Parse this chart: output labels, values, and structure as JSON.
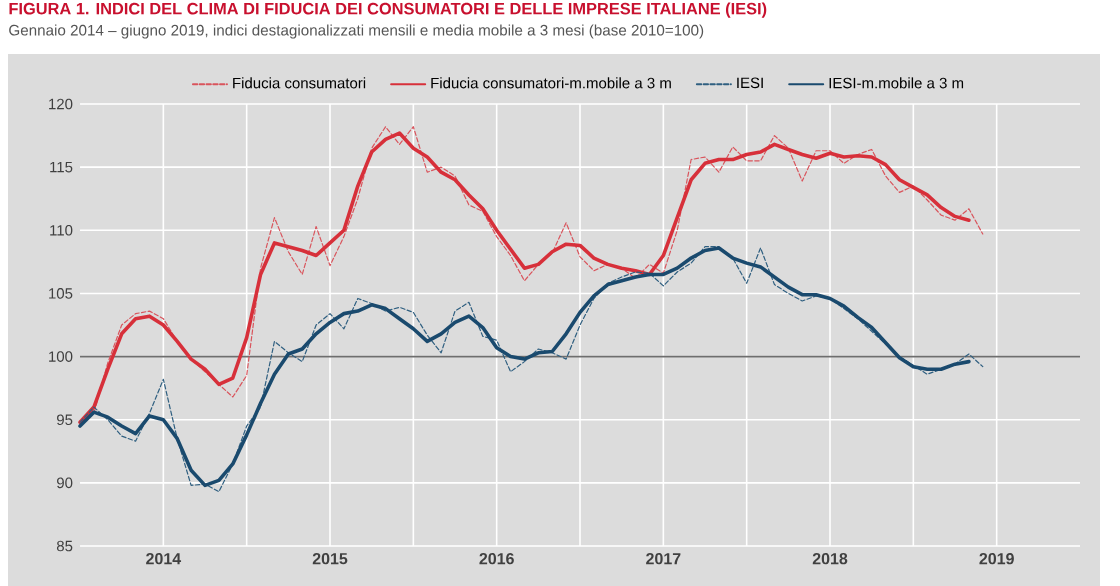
{
  "chart_data": {
    "type": "line",
    "title": "FIGURA 1. INDICI DEL CLIMA DI FIDUCIA DEI CONSUMATORI E DELLE IMPRESE ITALIANE (IESI)",
    "subtitle": "Gennaio 2014 – giugno 2019, indici destagionalizzati mensili e media mobile a 3 mesi (base 2010=100)",
    "x": [
      "2014-01",
      "2014-02",
      "2014-03",
      "2014-04",
      "2014-05",
      "2014-06",
      "2014-07",
      "2014-08",
      "2014-09",
      "2014-10",
      "2014-11",
      "2014-12",
      "2015-01",
      "2015-02",
      "2015-03",
      "2015-04",
      "2015-05",
      "2015-06",
      "2015-07",
      "2015-08",
      "2015-09",
      "2015-10",
      "2015-11",
      "2015-12",
      "2016-01",
      "2016-02",
      "2016-03",
      "2016-04",
      "2016-05",
      "2016-06",
      "2016-07",
      "2016-08",
      "2016-09",
      "2016-10",
      "2016-11",
      "2016-12",
      "2017-01",
      "2017-02",
      "2017-03",
      "2017-04",
      "2017-05",
      "2017-06",
      "2017-07",
      "2017-08",
      "2017-09",
      "2017-10",
      "2017-11",
      "2017-12",
      "2018-01",
      "2018-02",
      "2018-03",
      "2018-04",
      "2018-05",
      "2018-06",
      "2018-07",
      "2018-08",
      "2018-09",
      "2018-10",
      "2018-11",
      "2018-12",
      "2019-01",
      "2019-02",
      "2019-03",
      "2019-04",
      "2019-05",
      "2019-06"
    ],
    "series": [
      {
        "name": "Fiducia consumatori",
        "color": "#d9545c",
        "line_style": "dashed",
        "values": [
          94.5,
          95.5,
          99.5,
          102.5,
          103.4,
          103.6,
          103.0,
          101.2,
          99.8,
          98.8,
          97.8,
          96.8,
          98.5,
          107,
          111,
          108.3,
          106.5,
          110.3,
          107.2,
          109.5,
          112.5,
          116.5,
          118.2,
          116.8,
          118.2,
          114.6,
          115.0,
          114.3,
          112.0,
          111.5,
          109.5,
          108.0,
          106.0,
          107.3,
          108.2,
          110.6,
          107.9,
          106.8,
          107.3,
          107.0,
          106.2,
          107.3,
          106.6,
          110.0,
          115.6,
          115.8,
          114.6,
          116.6,
          115.5,
          115.5,
          117.5,
          116.5,
          113.9,
          116.3,
          116.3,
          115.3,
          116.0,
          116.4,
          114.3,
          113.0,
          113.5,
          112.4,
          111.2,
          110.8,
          111.7,
          109.7
        ]
      },
      {
        "name": "Fiducia consumatori-m.mobile a 3 m",
        "color": "#d7303a",
        "line_style": "solid",
        "values": [
          94.8,
          96,
          99,
          101.8,
          103.0,
          103.2,
          102.5,
          101.2,
          99.8,
          99.0,
          97.8,
          98.3,
          101.5,
          106.5,
          109.0,
          108.7,
          108.4,
          108.0,
          109.0,
          110.0,
          113.5,
          116.2,
          117.2,
          117.7,
          116.5,
          115.8,
          114.6,
          114.0,
          112.8,
          111.7,
          110.0,
          108.5,
          107.0,
          107.3,
          108.3,
          108.9,
          108.8,
          107.8,
          107.3,
          107.0,
          106.8,
          106.5,
          108.0,
          111.0,
          114.0,
          115.3,
          115.6,
          115.6,
          116.0,
          116.2,
          116.8,
          116.4,
          116.0,
          115.7,
          116.1,
          115.8,
          115.9,
          115.8,
          115.2,
          114.0,
          113.4,
          112.8,
          111.8,
          111.1,
          110.8,
          null
        ]
      },
      {
        "name": "IESI",
        "color": "#2f5f80",
        "line_style": "dashed",
        "values": [
          94.8,
          96,
          95.0,
          93.7,
          93.3,
          95.5,
          98.2,
          93.5,
          89.8,
          89.9,
          89.3,
          91.5,
          94.5,
          96,
          101.2,
          100.3,
          99.6,
          102.5,
          103.4,
          102.2,
          104.6,
          104.2,
          103.6,
          103.9,
          103.5,
          101.7,
          100.3,
          103.6,
          104.3,
          101.6,
          101.3,
          98.8,
          99.6,
          100.6,
          100.3,
          99.8,
          102.5,
          104.6,
          105.8,
          106.3,
          106.7,
          106.6,
          105.6,
          106.7,
          107.4,
          108.7,
          108.7,
          107.8,
          105.8,
          108.6,
          105.7,
          105.0,
          104.4,
          104.8,
          104.6,
          103.8,
          103.0,
          102.0,
          101.0,
          100.0,
          99.3,
          98.6,
          99.0,
          99.4,
          100.2,
          99.2
        ]
      },
      {
        "name": "IESI-m.mobile a 3 m",
        "color": "#1a4a6e",
        "line_style": "solid",
        "values": [
          94.5,
          95.6,
          95.2,
          94.5,
          93.9,
          95.3,
          95.0,
          93.5,
          91.0,
          89.8,
          90.2,
          91.5,
          93.8,
          96.3,
          98.6,
          100.2,
          100.6,
          101.8,
          102.7,
          103.4,
          103.6,
          104.1,
          103.8,
          103.0,
          102.2,
          101.2,
          101.8,
          102.7,
          103.2,
          102.3,
          100.7,
          100.0,
          99.8,
          100.3,
          100.4,
          101.8,
          103.5,
          104.8,
          105.7,
          106.0,
          106.3,
          106.5,
          106.5,
          107.0,
          107.8,
          108.4,
          108.6,
          107.8,
          107.4,
          107.1,
          106.3,
          105.5,
          104.9,
          104.9,
          104.6,
          104.0,
          103.1,
          102.3,
          101.1,
          99.9,
          99.2,
          99.0,
          99.0,
          99.4,
          99.6,
          null
        ]
      }
    ],
    "xlim": [
      "2014-01",
      "2020-01"
    ],
    "xticks": [
      {
        "value": "2014-07",
        "label": "2014"
      },
      {
        "value": "2015-01",
        "label": null
      },
      {
        "value": "2015-07",
        "label": "2015"
      },
      {
        "value": "2016-01",
        "label": null
      },
      {
        "value": "2016-07",
        "label": "2016"
      },
      {
        "value": "2017-01",
        "label": null
      },
      {
        "value": "2017-07",
        "label": "2017"
      },
      {
        "value": "2018-01",
        "label": null
      },
      {
        "value": "2018-07",
        "label": "2018"
      },
      {
        "value": "2019-01",
        "label": null
      },
      {
        "value": "2019-07",
        "label": "2019"
      }
    ],
    "ylim": [
      85,
      120
    ],
    "yticks": [
      85,
      90,
      95,
      100,
      105,
      110,
      115,
      120
    ],
    "ref_lines": [
      {
        "axis": "y",
        "value": 100,
        "color": "#6e6e6e"
      }
    ],
    "grid": true,
    "legend": "top"
  }
}
